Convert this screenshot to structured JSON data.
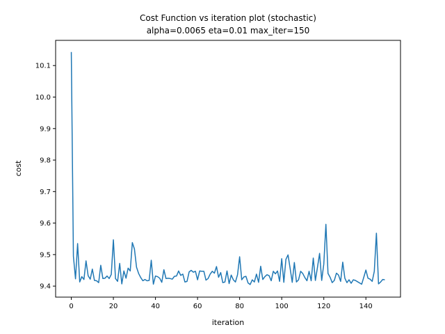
{
  "chart_data": {
    "type": "line",
    "title": "Cost Function vs iteration plot (stochastic)",
    "subtitle": "alpha=0.0065 eta=0.01 max_iter=150",
    "xlabel": "iteration",
    "ylabel": "cost",
    "xlim": [
      -7.45,
      156.45
    ],
    "ylim": [
      9.365,
      10.18
    ],
    "xticks": [
      0,
      20,
      40,
      60,
      80,
      100,
      120,
      140
    ],
    "yticks": [
      9.4,
      9.5,
      9.6,
      9.7,
      9.8,
      9.9,
      10.0,
      10.1
    ],
    "ytick_labels": [
      "9.4",
      "9.5",
      "9.6",
      "9.7",
      "9.8",
      "9.9",
      "10.0",
      "10.1"
    ],
    "grid": false,
    "colors": {
      "line": "#1f77b4"
    },
    "series": [
      {
        "x": [
          0,
          1,
          2,
          3,
          4,
          5,
          6,
          7,
          8,
          9,
          10,
          11,
          12,
          13,
          14,
          15,
          16,
          17,
          18,
          19,
          20,
          21,
          22,
          23,
          24,
          25,
          26,
          27,
          28,
          29,
          30,
          31,
          32,
          33,
          34,
          35,
          36,
          37,
          38,
          39,
          40,
          41,
          42,
          43,
          44,
          45,
          46,
          47,
          48,
          49,
          50,
          51,
          52,
          53,
          54,
          55,
          56,
          57,
          58,
          59,
          60,
          61,
          62,
          63,
          64,
          65,
          66,
          67,
          68,
          69,
          70,
          71,
          72,
          73,
          74,
          75,
          76,
          77,
          78,
          79,
          80,
          81,
          82,
          83,
          84,
          85,
          86,
          87,
          88,
          89,
          90,
          91,
          92,
          93,
          94,
          95,
          96,
          97,
          98,
          99,
          100,
          101,
          102,
          103,
          104,
          105,
          106,
          107,
          108,
          109,
          110,
          111,
          112,
          113,
          114,
          115,
          116,
          117,
          118,
          119,
          120,
          121,
          122,
          123,
          124,
          125,
          126,
          127,
          128,
          129,
          130,
          131,
          132,
          133,
          134,
          135,
          136,
          137,
          138,
          139,
          140,
          141,
          142,
          143,
          144,
          145,
          146,
          147,
          148,
          149
        ],
        "y": [
          10.143,
          9.495,
          9.423,
          9.535,
          9.413,
          9.43,
          9.421,
          9.48,
          9.433,
          9.422,
          9.454,
          9.418,
          9.417,
          9.411,
          9.466,
          9.424,
          9.425,
          9.432,
          9.424,
          9.437,
          9.547,
          9.424,
          9.415,
          9.472,
          9.407,
          9.448,
          9.425,
          9.457,
          9.448,
          9.538,
          9.518,
          9.46,
          9.44,
          9.427,
          9.417,
          9.421,
          9.417,
          9.418,
          9.482,
          9.406,
          9.432,
          9.43,
          9.425,
          9.412,
          9.452,
          9.424,
          9.425,
          9.424,
          9.422,
          9.431,
          9.432,
          9.448,
          9.434,
          9.438,
          9.413,
          9.415,
          9.445,
          9.45,
          9.444,
          9.447,
          9.42,
          9.448,
          9.447,
          9.447,
          9.419,
          9.424,
          9.438,
          9.447,
          9.441,
          9.462,
          9.428,
          9.443,
          9.411,
          9.413,
          9.448,
          9.408,
          9.435,
          9.42,
          9.413,
          9.436,
          9.493,
          9.42,
          9.429,
          9.431,
          9.41,
          9.405,
          9.42,
          9.413,
          9.438,
          9.412,
          9.463,
          9.421,
          9.43,
          9.436,
          9.433,
          9.417,
          9.447,
          9.439,
          9.448,
          9.415,
          9.487,
          9.412,
          9.485,
          9.499,
          9.456,
          9.412,
          9.475,
          9.413,
          9.42,
          9.447,
          9.44,
          9.427,
          9.417,
          9.447,
          9.417,
          9.489,
          9.418,
          9.46,
          9.504,
          9.418,
          9.47,
          9.596,
          9.44,
          9.428,
          9.411,
          9.418,
          9.441,
          9.435,
          9.415,
          9.476,
          9.425,
          9.411,
          9.42,
          9.409,
          9.42,
          9.418,
          9.414,
          9.41,
          9.406,
          9.428,
          9.451,
          9.425,
          9.422,
          9.415,
          9.447,
          9.568,
          9.407,
          9.413,
          9.421,
          9.42
        ]
      }
    ]
  }
}
